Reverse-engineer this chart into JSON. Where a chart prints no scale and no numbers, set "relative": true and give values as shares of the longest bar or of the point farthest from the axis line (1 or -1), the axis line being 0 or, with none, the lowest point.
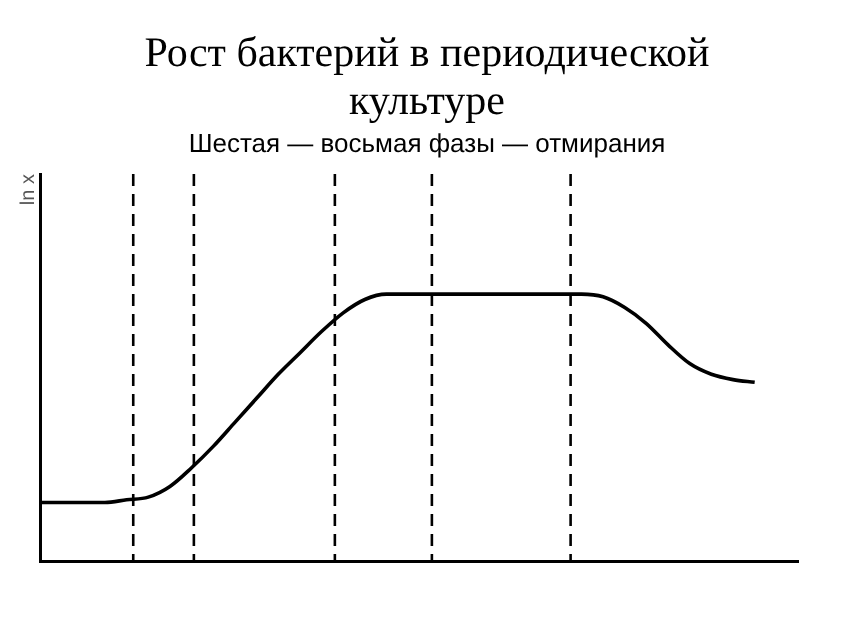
{
  "chart_data": {
    "type": "line",
    "title": "Рост бактерий в периодической культуре",
    "subtitle": "Шестая — восьмая фазы — отмирания",
    "ylabel": "ln x",
    "relative": true,
    "categories": [
      null,
      null,
      null,
      null,
      null,
      null,
      null,
      null,
      null,
      null,
      null,
      null,
      null,
      null,
      null,
      null,
      null,
      null,
      null,
      null,
      null,
      null,
      null,
      null,
      null,
      null,
      null,
      null,
      null,
      null,
      null,
      null,
      null,
      null,
      null,
      null
    ],
    "series": [
      {
        "color": "#000000",
        "values": [
          0.22,
          0.22,
          0.22,
          0.22,
          0.23,
          0.24,
          0.28,
          0.35,
          0.43,
          0.52,
          0.61,
          0.7,
          0.78,
          0.86,
          0.93,
          0.98,
          1,
          1,
          1,
          1,
          1,
          1,
          1,
          1,
          1,
          1,
          0.99,
          0.95,
          0.89,
          0.81,
          0.74,
          0.7,
          0.68,
          0.67,
          null,
          null
        ]
      }
    ],
    "marker": "none",
    "line_style": "solid",
    "grid": false,
    "legend": false
  }
}
